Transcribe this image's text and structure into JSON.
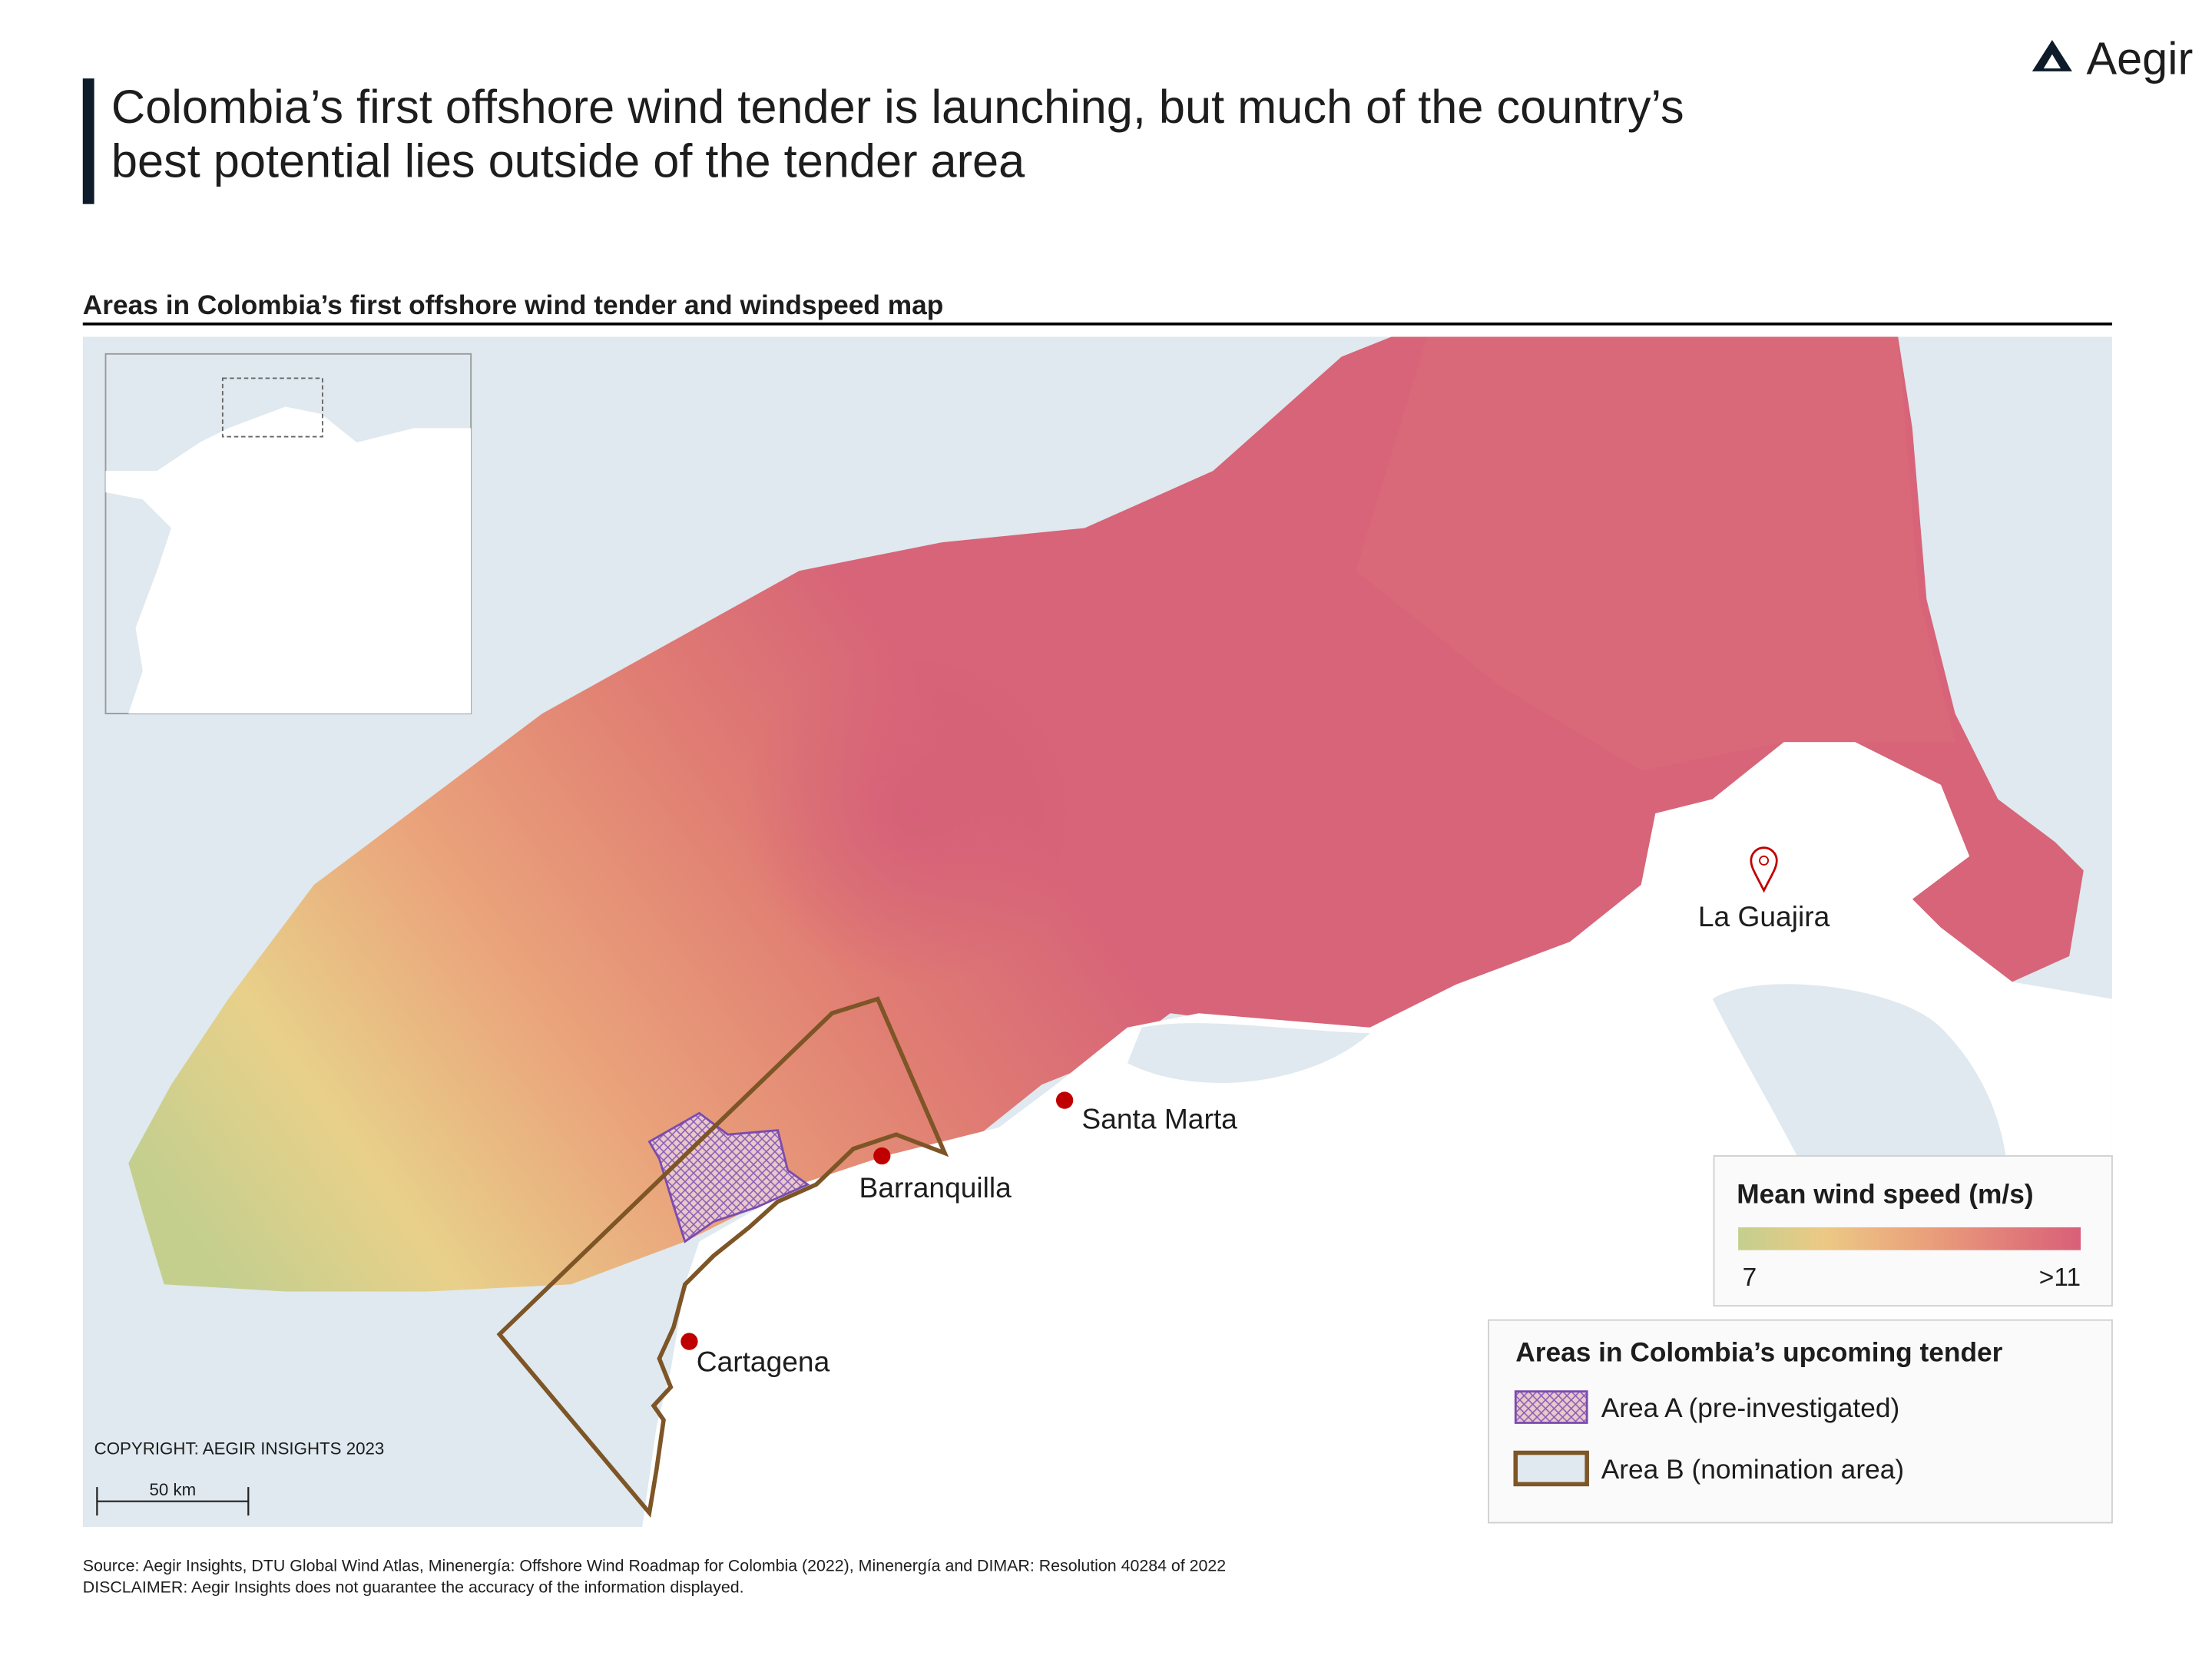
{
  "header": {
    "logo": "Aegir",
    "title_lines": [
      "Colombia’s first offshore wind tender is launching, but much of the country’s",
      "best potential lies outside of the tender area"
    ],
    "subtitle": "Areas in Colombia’s first offshore wind tender and windspeed map"
  },
  "map": {
    "places": [
      {
        "label": "Santa Marta"
      },
      {
        "label": "Barranquilla"
      },
      {
        "label": "Cartagena"
      },
      {
        "label": "La Guajira"
      }
    ],
    "copyright": "COPYRIGHT: AEGIR INSIGHTS 2023",
    "scale_bar": "50 km"
  },
  "legends": {
    "wind": {
      "title": "Mean wind speed (m/s)",
      "min_label": "7",
      "max_label": ">11"
    },
    "tender": {
      "title": "Areas in Colombia’s upcoming tender",
      "items": [
        "Area A (pre-investigated)",
        "Area B (nomination area)"
      ]
    }
  },
  "footer": {
    "source": "Source: Aegir Insights, DTU Global Wind Atlas, Minenergía: Offshore Wind Roadmap for Colombia (2022), Minenergía and DIMAR: Resolution 40284 of 2022",
    "disclaimer": "DISCLAIMER: Aegir Insights does not guarantee the accuracy of the information displayed."
  }
}
